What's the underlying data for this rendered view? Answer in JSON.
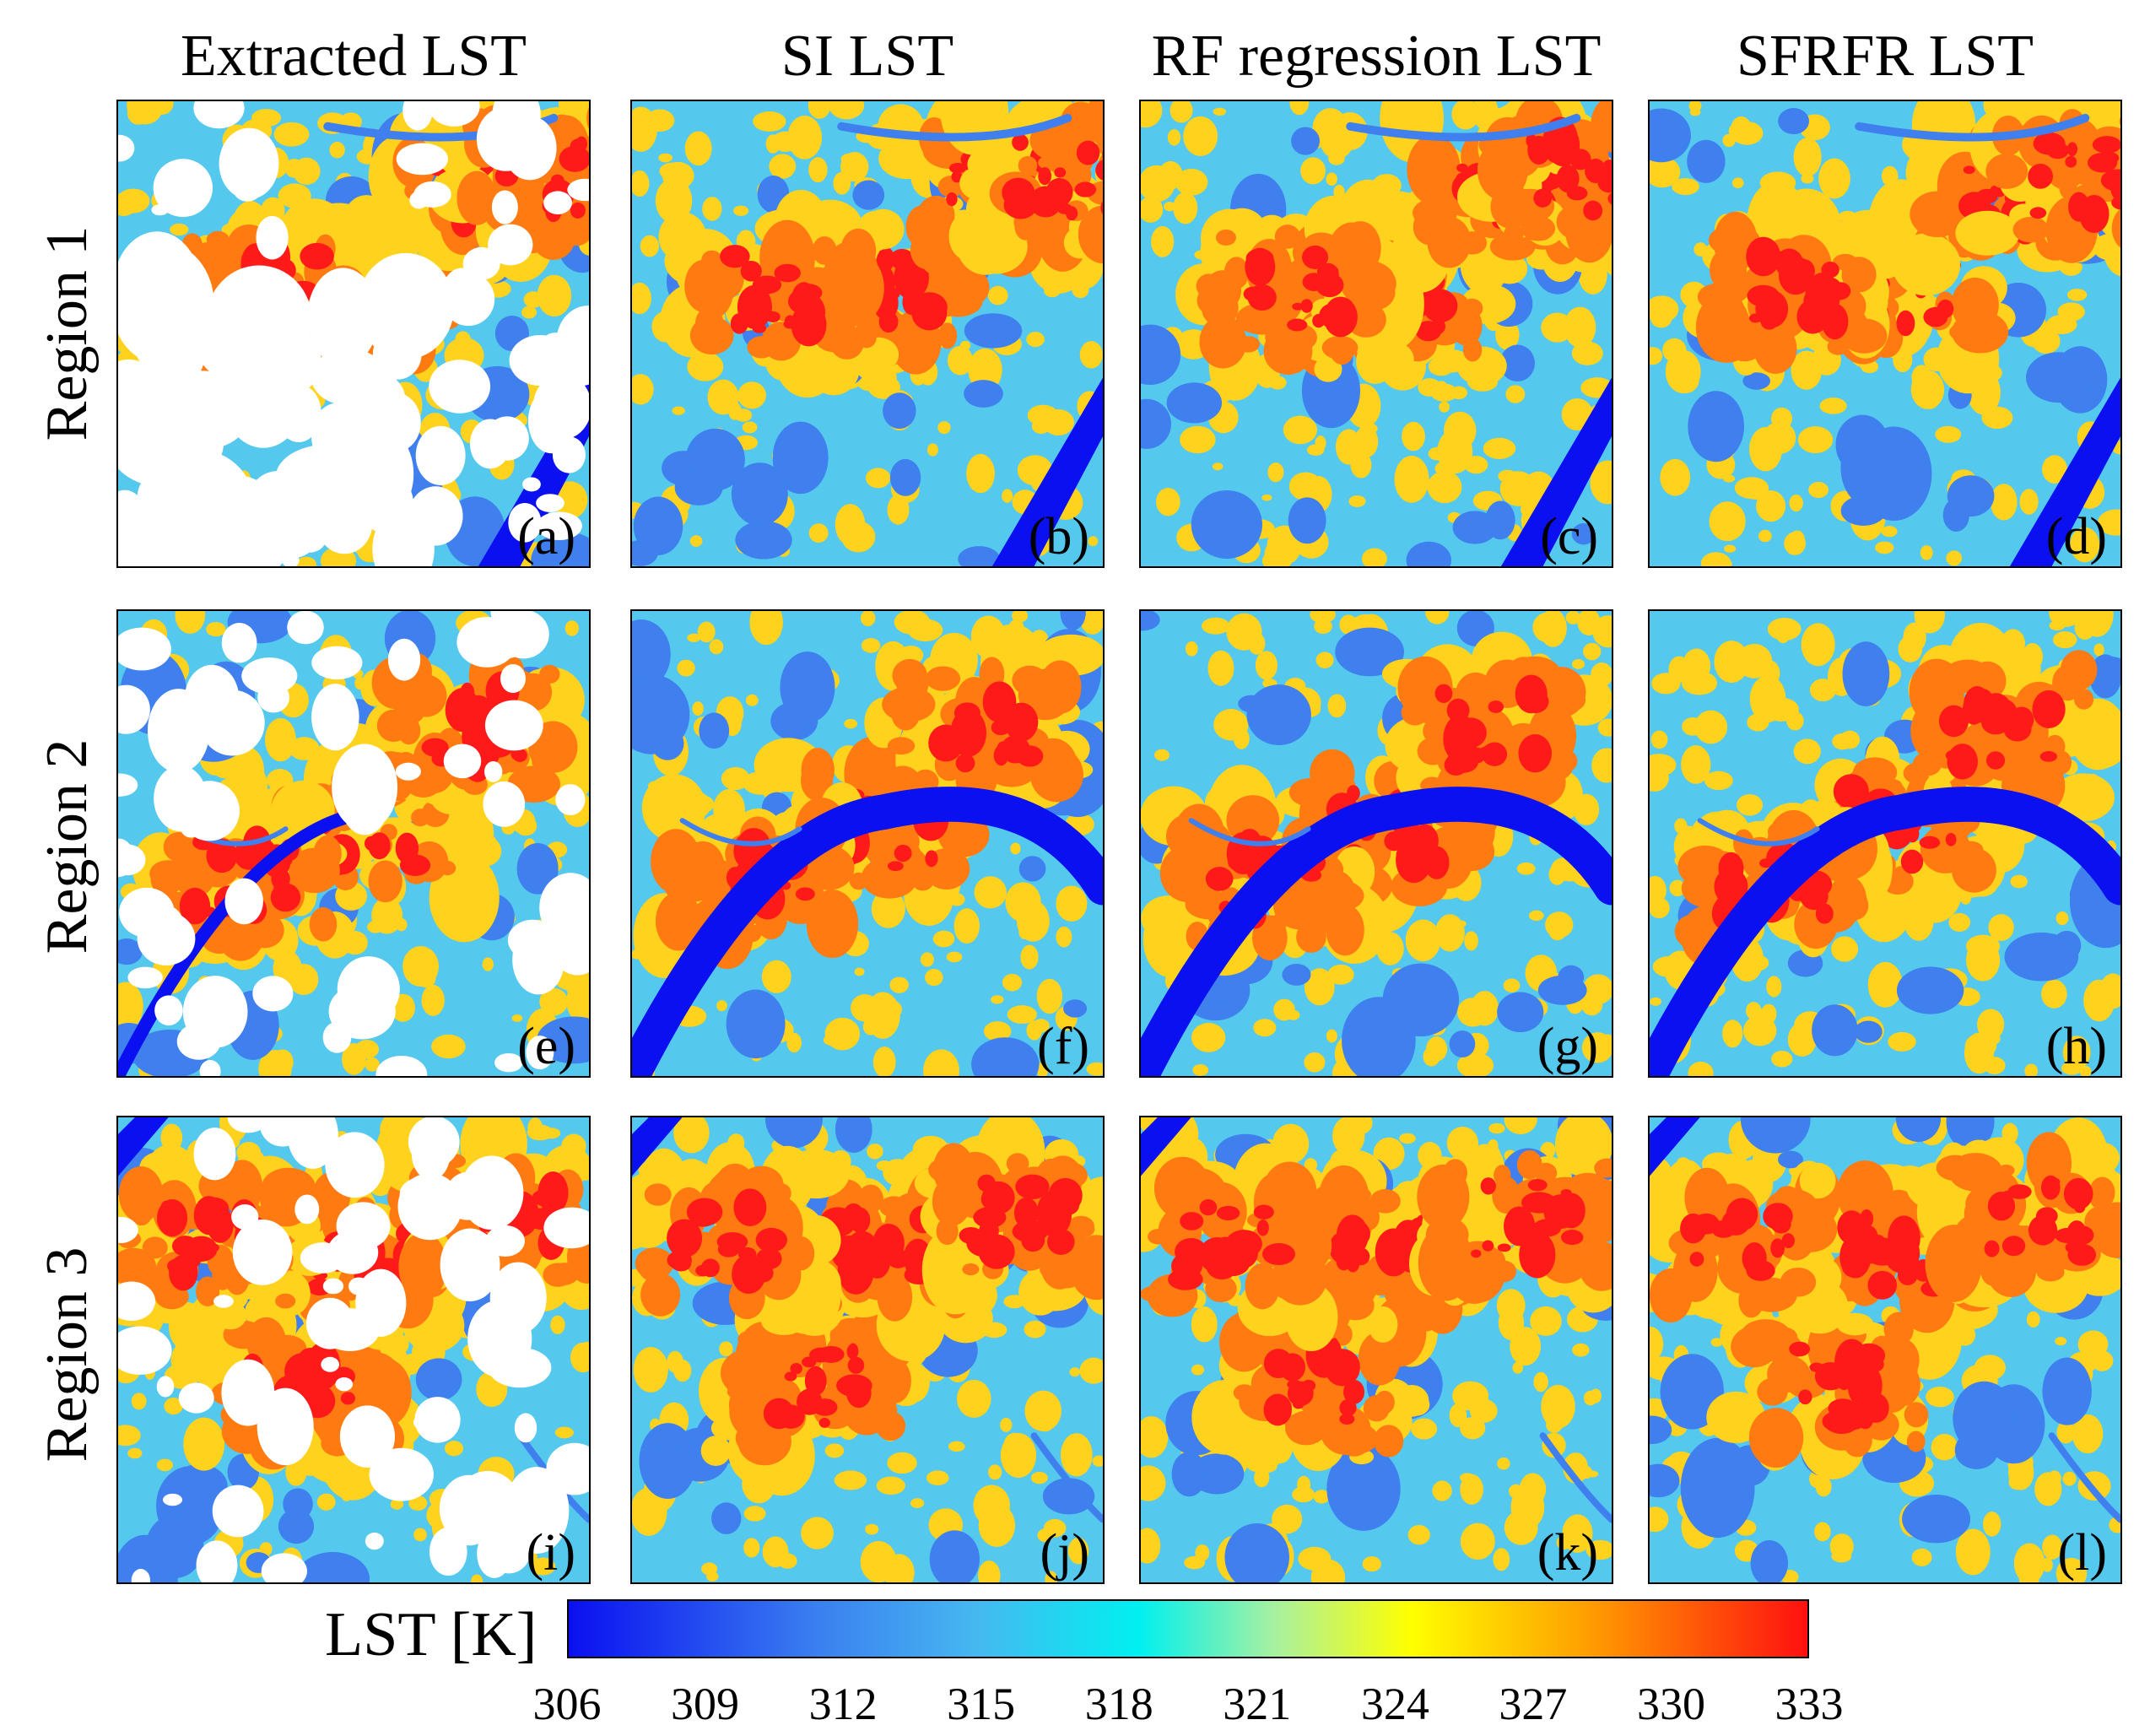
{
  "columns": [
    "Extracted LST",
    "SI LST",
    "RF regression LST",
    "SFRFR LST"
  ],
  "rows": [
    "Region 1",
    "Region 2",
    "Region 3"
  ],
  "panel_labels": [
    "(a)",
    "(b)",
    "(c)",
    "(d)",
    "(e)",
    "(f)",
    "(g)",
    "(h)",
    "(i)",
    "(j)",
    "(k)",
    "(l)"
  ],
  "colorbar": {
    "title": "LST [K]",
    "ticks": [
      "306",
      "309",
      "312",
      "315",
      "318",
      "321",
      "324",
      "327",
      "330",
      "333"
    ],
    "min": 306,
    "max": 333,
    "colors": [
      "#0a10f0",
      "#3a7ff0",
      "#46b8f0",
      "#00f0f0",
      "#a8f0a0",
      "#ffff00",
      "#ffa000",
      "#ff1010"
    ]
  },
  "colors": {
    "water": "#0a10f0",
    "cool": "#3f7fee",
    "mild": "#55c8ee",
    "warm": "#ffd21e",
    "hot": "#ff7a10",
    "hottest": "#ff1a1a",
    "cloud": "#ffffff"
  }
}
